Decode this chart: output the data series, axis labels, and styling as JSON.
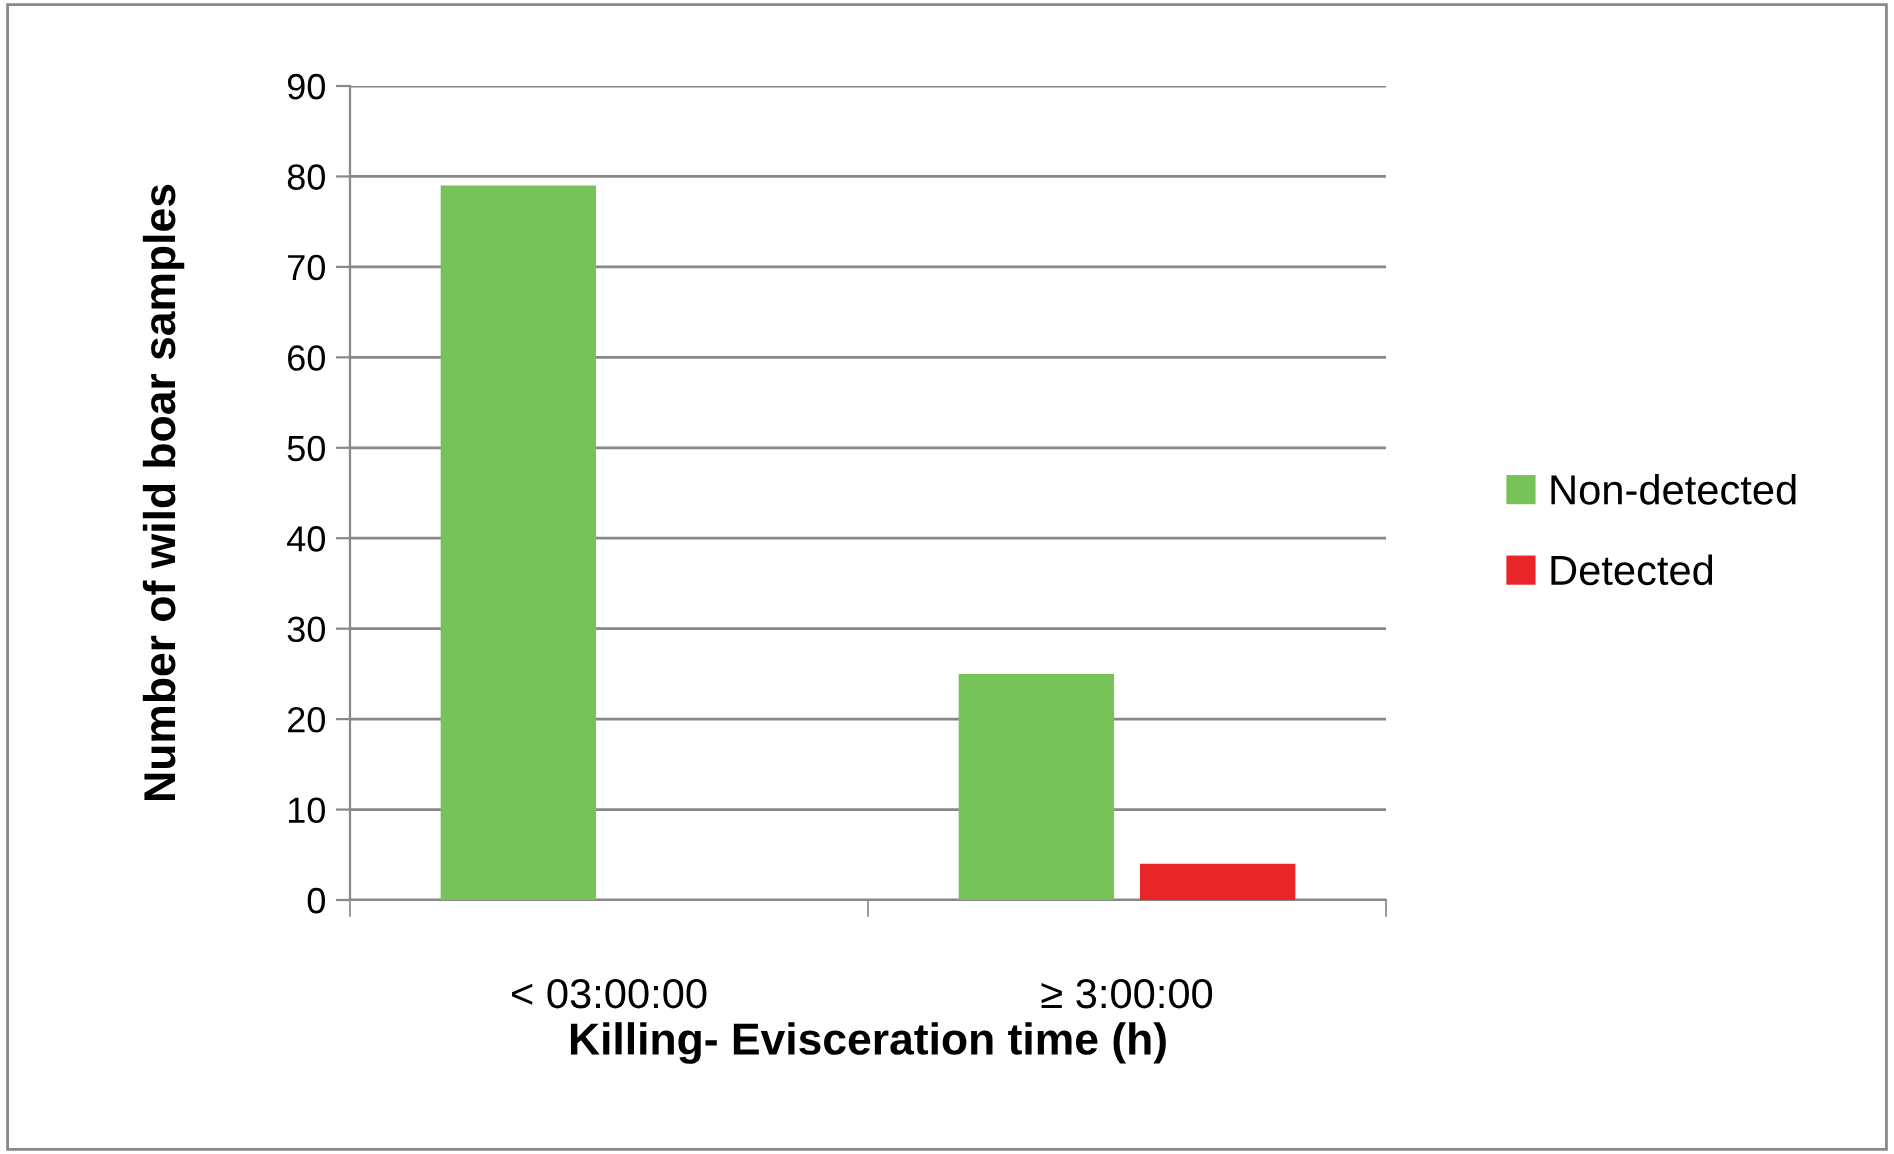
{
  "chart_data": {
    "type": "bar",
    "xlabel": "Killing- Evisceration time (h)",
    "ylabel": "Number of wild boar samples",
    "categories": [
      "< 03:00:00",
      "≥ 3:00:00"
    ],
    "series": [
      {
        "name": "Non-detected",
        "color": "#77c35a",
        "values": [
          79,
          25
        ]
      },
      {
        "name": "Detected",
        "color": "#e8262a",
        "values": [
          0,
          4
        ]
      }
    ],
    "ylim": [
      0,
      90
    ],
    "yticks": [
      0,
      10,
      20,
      30,
      40,
      50,
      60,
      70,
      80,
      90
    ],
    "grid": "y",
    "legend": "right"
  }
}
